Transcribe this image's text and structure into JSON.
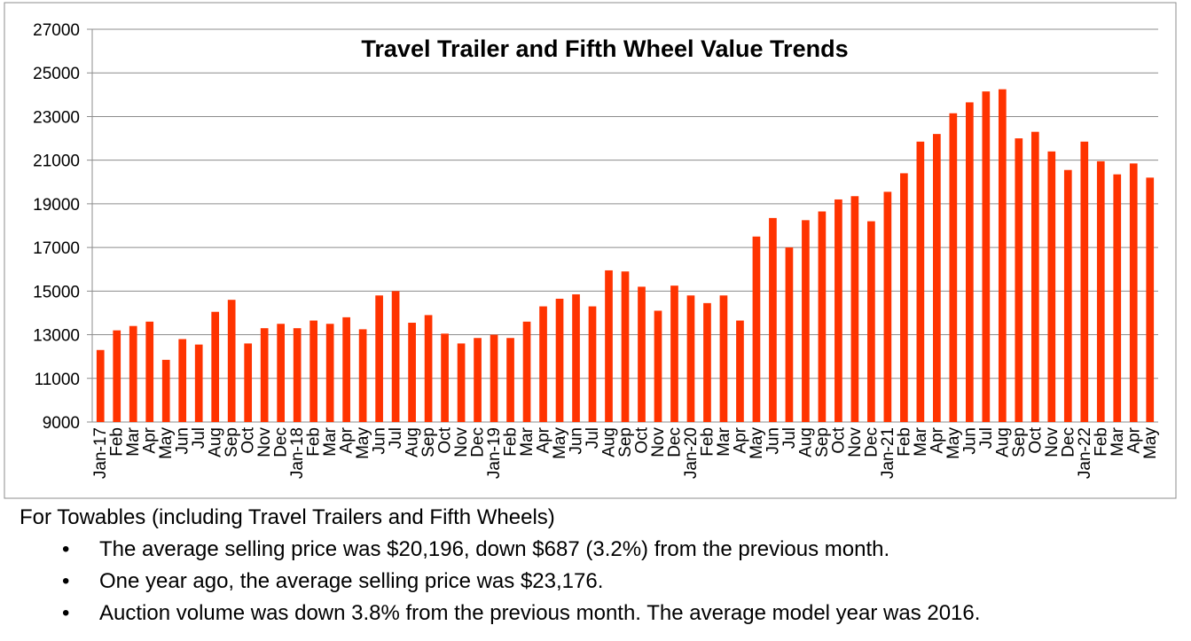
{
  "chart_data": {
    "type": "bar",
    "title": "Travel Trailer and Fifth Wheel Value Trends",
    "xlabel": "",
    "ylabel": "",
    "ylim": [
      9000,
      27000
    ],
    "yticks": [
      9000,
      11000,
      13000,
      15000,
      17000,
      19000,
      21000,
      23000,
      25000,
      27000
    ],
    "grid": true,
    "legend": "none",
    "bar_color": "#FF3300",
    "categories": [
      "Jan-17",
      "Feb",
      "Mar",
      "Apr",
      "May",
      "Jun",
      "Jul",
      "Aug",
      "Sep",
      "Oct",
      "Nov",
      "Dec",
      "Jan-18",
      "Feb",
      "Mar",
      "Apr",
      "May",
      "Jun",
      "Jul",
      "Aug",
      "Sep",
      "Oct",
      "Nov",
      "Dec",
      "Jan-19",
      "Feb",
      "Mar",
      "Apr",
      "May",
      "Jun",
      "Jul",
      "Aug",
      "Sep",
      "Oct",
      "Nov",
      "Dec",
      "Jan-20",
      "Feb",
      "Mar",
      "Apr",
      "May",
      "Jun",
      "Jul",
      "Aug",
      "Sep",
      "Oct",
      "Nov",
      "Dec",
      "Jan-21",
      "Feb",
      "Mar",
      "Apr",
      "May",
      "Jun",
      "Jul",
      "Aug",
      "Sep",
      "Oct",
      "Nov",
      "Dec",
      "Jan-22",
      "Feb",
      "Mar",
      "Apr",
      "May"
    ],
    "values": [
      12300,
      13200,
      13400,
      13600,
      11850,
      12800,
      12550,
      14050,
      14600,
      12600,
      13300,
      13500,
      13300,
      13650,
      13500,
      13800,
      13250,
      14800,
      15000,
      13550,
      13900,
      13050,
      12600,
      12850,
      13000,
      12850,
      13600,
      14300,
      14650,
      14850,
      14300,
      15950,
      15900,
      15200,
      14100,
      15250,
      14800,
      14450,
      14800,
      13650,
      17500,
      18350,
      17000,
      18250,
      18650,
      19200,
      19350,
      18200,
      19550,
      20400,
      21850,
      22200,
      23150,
      23650,
      24150,
      24250,
      22000,
      22300,
      21400,
      20550,
      21850,
      20950,
      20350,
      20850,
      20200
    ]
  },
  "notes": {
    "heading": "For Towables (including Travel Trailers and Fifth Wheels)",
    "bullets": [
      "The average selling price was $20,196, down $687 (3.2%) from the previous month.",
      "One year ago, the average selling price was $23,176.",
      "Auction volume was down 3.8% from the previous month.  The average model year was 2016."
    ],
    "bullet_glyph": "•"
  }
}
